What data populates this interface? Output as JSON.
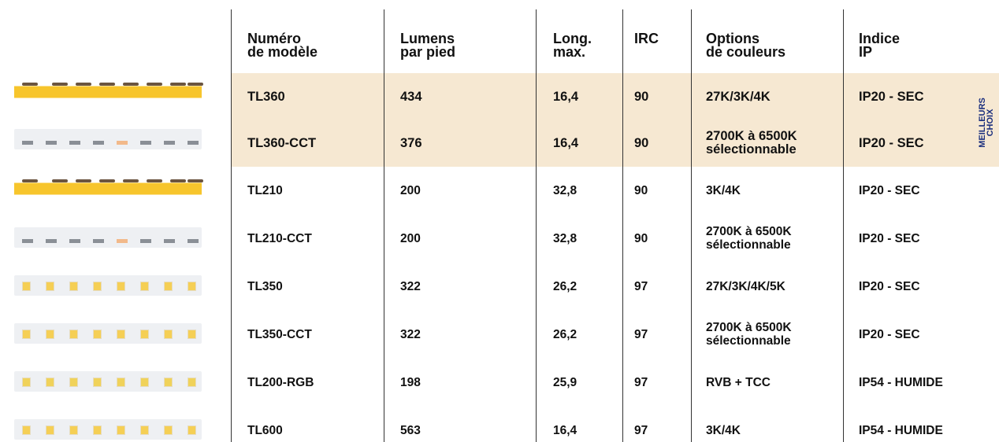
{
  "table": {
    "header": [
      [
        "Numéro",
        "de modèle"
      ],
      [
        "Lumens",
        "par pied"
      ],
      [
        "Long.",
        "max."
      ],
      [
        "IRC"
      ],
      [
        "Options",
        "de couleurs"
      ],
      [
        "Indice",
        "IP"
      ]
    ],
    "rows": [
      [
        "TL360",
        "434",
        "16,4",
        "90",
        [
          "27K/3K/4K"
        ],
        "IP20 - SEC"
      ],
      [
        "TL360-CCT",
        "376",
        "16,4",
        "90",
        [
          "2700K à 6500K",
          "sélectionnable"
        ],
        "IP20 - SEC"
      ],
      [
        "TL210",
        "200",
        "32,8",
        "90",
        [
          "3K/4K"
        ],
        "IP20 - SEC"
      ],
      [
        "TL210-CCT",
        "200",
        "32,8",
        "90",
        [
          "2700K à 6500K",
          "sélectionnable"
        ],
        "IP20 - SEC"
      ],
      [
        "TL350",
        "322",
        "26,2",
        "97",
        [
          "27K/3K/4K/5K"
        ],
        "IP20 - SEC"
      ],
      [
        "TL350-CCT",
        "322",
        "26,2",
        "97",
        [
          "2700K à 6500K",
          "sélectionnable"
        ],
        "IP20 - SEC"
      ],
      [
        "TL200-RGB",
        "198",
        "25,9",
        "97",
        [
          "RVB + TCC"
        ],
        "IP54 - HUMIDE"
      ],
      [
        "TL600",
        "563",
        "16,4",
        "97",
        [
          "3K/4K"
        ],
        "IP54 - HUMIDE"
      ]
    ],
    "badge": [
      "MEILLEURS",
      "CHOIX"
    ]
  }
}
